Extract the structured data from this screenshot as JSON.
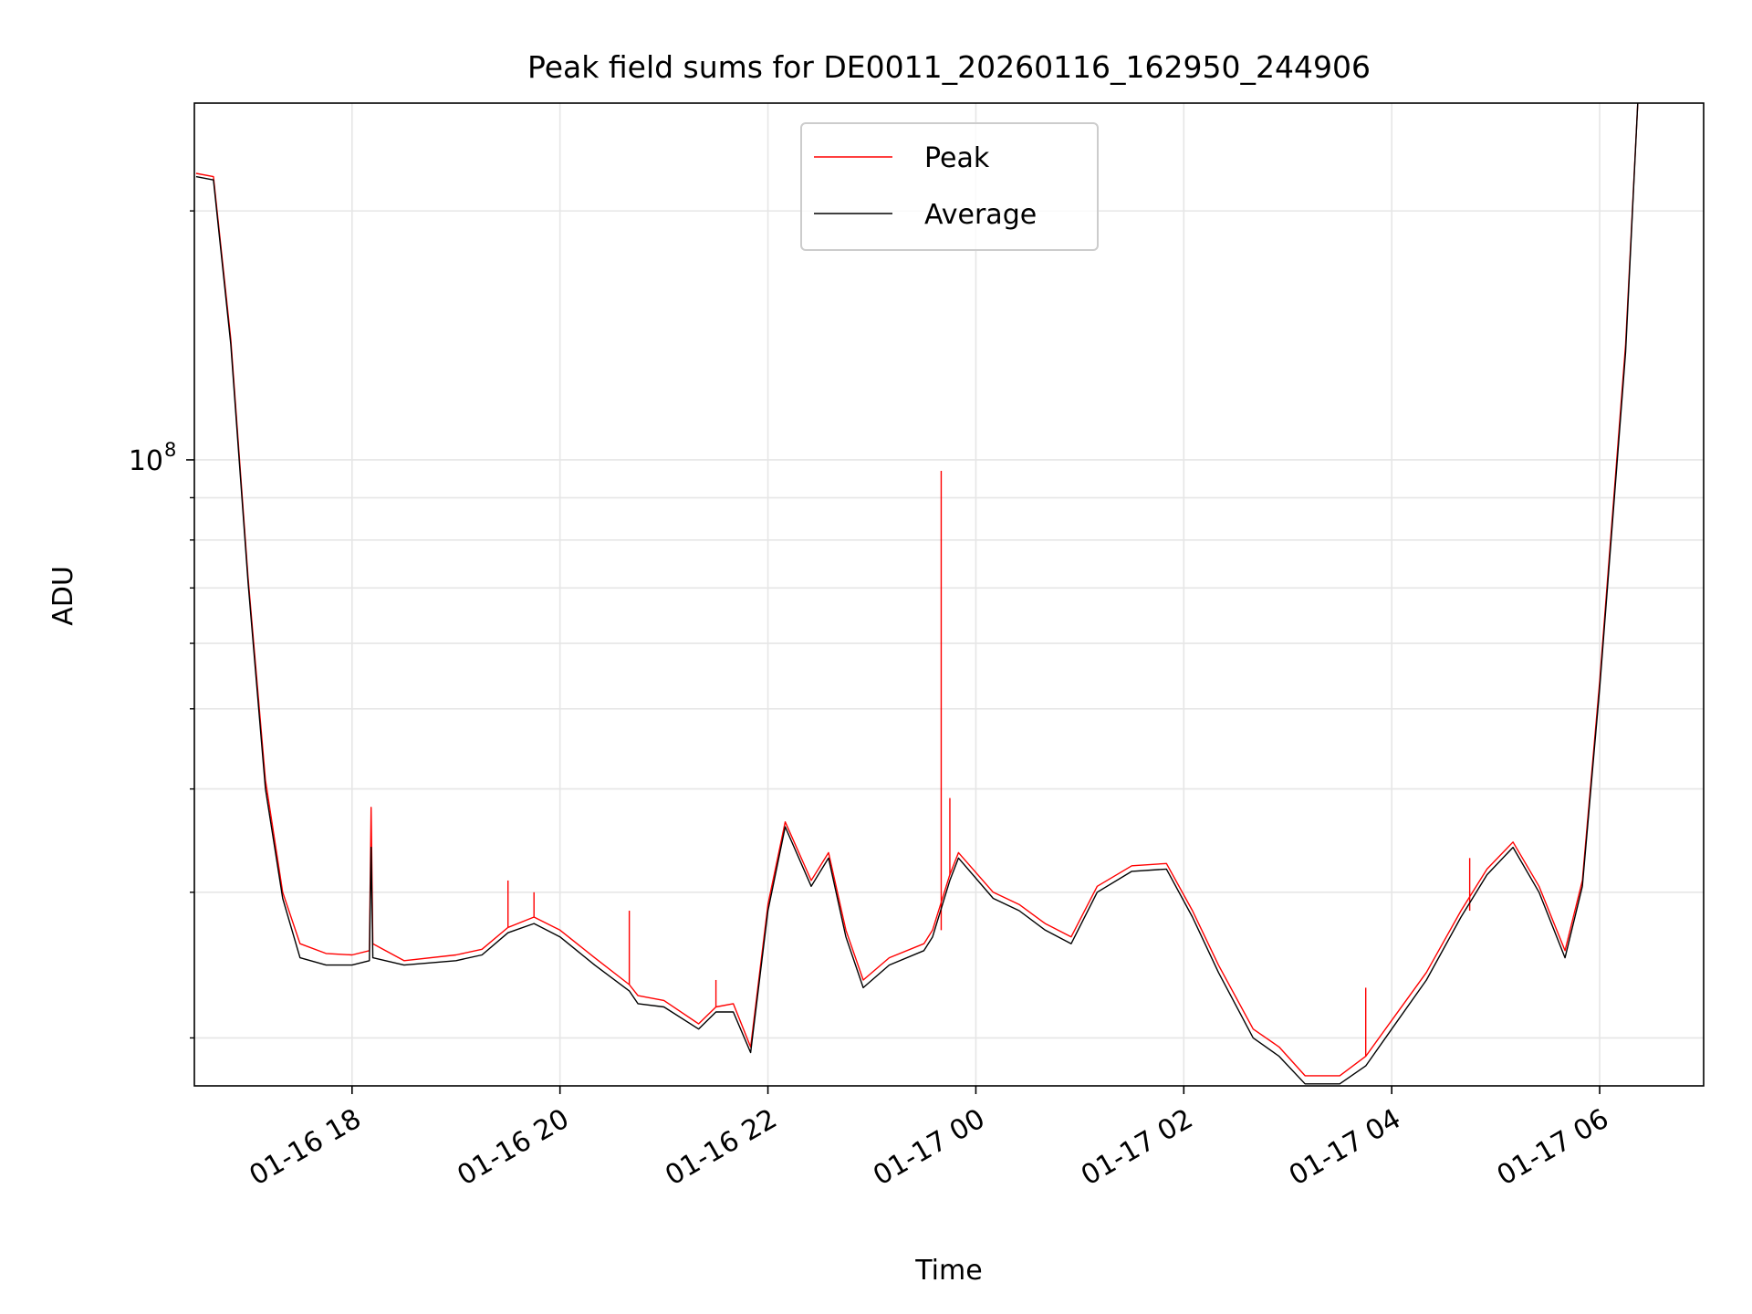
{
  "chart_data": {
    "type": "line",
    "title": "Peak field sums for DE0011_20260116_162950_244906",
    "xlabel": "Time",
    "ylabel": "ADU",
    "yscale": "log",
    "grid": true,
    "legend_position": "top-center",
    "xlim": [
      "2026-01-16 16:29",
      "2026-01-17 07:00"
    ],
    "ylim": [
      17500000,
      270000000
    ],
    "x_ticks": [
      {
        "label": "01-16 18",
        "value": "2026-01-16 18:00"
      },
      {
        "label": "01-16 20",
        "value": "2026-01-16 20:00"
      },
      {
        "label": "01-16 22",
        "value": "2026-01-16 22:00"
      },
      {
        "label": "01-17 00",
        "value": "2026-01-17 00:00"
      },
      {
        "label": "01-17 02",
        "value": "2026-01-17 02:00"
      },
      {
        "label": "01-17 04",
        "value": "2026-01-17 04:00"
      },
      {
        "label": "01-17 06",
        "value": "2026-01-17 06:00"
      }
    ],
    "y_major_ticks": [
      {
        "label_base": "10",
        "label_exp": "8",
        "value": 100000000
      }
    ],
    "y_minor_ticks": [
      20000000,
      30000000,
      40000000,
      50000000,
      60000000,
      70000000,
      80000000,
      90000000,
      200000000
    ],
    "series": [
      {
        "name": "Peak",
        "color": "#ff0000",
        "points": [
          [
            "2026-01-16 16:30",
            222000000.0
          ],
          [
            "2026-01-16 16:40",
            220000000.0
          ],
          [
            "2026-01-16 16:50",
            140000000.0
          ],
          [
            "2026-01-16 17:00",
            72000000.0
          ],
          [
            "2026-01-16 17:10",
            41000000.0
          ],
          [
            "2026-01-16 17:20",
            30000000.0
          ],
          [
            "2026-01-16 17:30",
            26000000.0
          ],
          [
            "2026-01-16 17:45",
            25300000.0
          ],
          [
            "2026-01-16 18:00",
            25200000.0
          ],
          [
            "2026-01-16 18:10",
            25500000.0
          ],
          [
            "2026-01-16 18:11",
            38000000.0
          ],
          [
            "2026-01-16 18:12",
            26000000.0
          ],
          [
            "2026-01-16 18:30",
            24800000.0
          ],
          [
            "2026-01-16 19:00",
            25200000.0
          ],
          [
            "2026-01-16 19:15",
            25600000.0
          ],
          [
            "2026-01-16 19:30",
            27200000.0
          ],
          [
            "2026-01-16 19:45",
            28000000.0
          ],
          [
            "2026-01-16 20:00",
            27000000.0
          ],
          [
            "2026-01-16 20:20",
            25000000.0
          ],
          [
            "2026-01-16 20:40",
            23200000.0
          ],
          [
            "2026-01-16 20:45",
            22500000.0
          ],
          [
            "2026-01-16 21:00",
            22200000.0
          ],
          [
            "2026-01-16 21:20",
            20800000.0
          ],
          [
            "2026-01-16 21:30",
            21800000.0
          ],
          [
            "2026-01-16 21:40",
            22000000.0
          ],
          [
            "2026-01-16 21:50",
            19500000.0
          ],
          [
            "2026-01-16 22:00",
            29000000.0
          ],
          [
            "2026-01-16 22:10",
            36500000.0
          ],
          [
            "2026-01-16 22:25",
            31000000.0
          ],
          [
            "2026-01-16 22:35",
            33500000.0
          ],
          [
            "2026-01-16 22:45",
            27000000.0
          ],
          [
            "2026-01-16 22:55",
            23500000.0
          ],
          [
            "2026-01-16 23:10",
            25000000.0
          ],
          [
            "2026-01-16 23:30",
            26000000.0
          ],
          [
            "2026-01-16 23:35",
            27000000.0
          ],
          [
            "2026-01-16 23:45",
            31500000.0
          ],
          [
            "2026-01-16 23:50",
            33500000.0
          ],
          [
            "2026-01-17 00:10",
            30000000.0
          ],
          [
            "2026-01-17 00:25",
            29000000.0
          ],
          [
            "2026-01-17 00:40",
            27500000.0
          ],
          [
            "2026-01-17 00:55",
            26500000.0
          ],
          [
            "2026-01-17 01:10",
            30500000.0
          ],
          [
            "2026-01-17 01:30",
            32300000.0
          ],
          [
            "2026-01-17 01:50",
            32500000.0
          ],
          [
            "2026-01-17 02:05",
            28500000.0
          ],
          [
            "2026-01-17 02:20",
            24500000.0
          ],
          [
            "2026-01-17 02:40",
            20500000.0
          ],
          [
            "2026-01-17 02:55",
            19500000.0
          ],
          [
            "2026-01-17 03:10",
            18000000.0
          ],
          [
            "2026-01-17 03:30",
            18000000.0
          ],
          [
            "2026-01-17 03:45",
            19000000.0
          ],
          [
            "2026-01-17 04:00",
            21000000.0
          ],
          [
            "2026-01-17 04:20",
            24000000.0
          ],
          [
            "2026-01-17 04:40",
            28500000.0
          ],
          [
            "2026-01-17 04:55",
            32000000.0
          ],
          [
            "2026-01-17 05:10",
            34500000.0
          ],
          [
            "2026-01-17 05:25",
            30500000.0
          ],
          [
            "2026-01-17 05:40",
            25500000.0
          ],
          [
            "2026-01-17 05:50",
            31000000.0
          ],
          [
            "2026-01-17 06:00",
            54000000.0
          ],
          [
            "2026-01-17 06:15",
            138000000.0
          ],
          [
            "2026-01-17 06:22",
            270000000.0
          ]
        ],
        "spikes": [
          [
            "2026-01-16 18:11",
            38000000.0
          ],
          [
            "2026-01-16 19:30",
            31000000.0
          ],
          [
            "2026-01-16 19:45",
            30000000.0
          ],
          [
            "2026-01-16 20:40",
            28500000.0
          ],
          [
            "2026-01-16 21:30",
            23500000.0
          ],
          [
            "2026-01-16 23:40",
            97000000.0
          ],
          [
            "2026-01-16 23:45",
            39000000.0
          ],
          [
            "2026-01-17 03:45",
            23000000.0
          ],
          [
            "2026-01-17 04:45",
            33000000.0
          ]
        ]
      },
      {
        "name": "Average",
        "color": "#000000",
        "points": [
          [
            "2026-01-16 16:30",
            220000000.0
          ],
          [
            "2026-01-16 16:40",
            218000000.0
          ],
          [
            "2026-01-16 16:50",
            138000000.0
          ],
          [
            "2026-01-16 17:00",
            71000000.0
          ],
          [
            "2026-01-16 17:10",
            40000000.0
          ],
          [
            "2026-01-16 17:20",
            29500000.0
          ],
          [
            "2026-01-16 17:30",
            25000000.0
          ],
          [
            "2026-01-16 17:45",
            24500000.0
          ],
          [
            "2026-01-16 18:00",
            24500000.0
          ],
          [
            "2026-01-16 18:10",
            24800000.0
          ],
          [
            "2026-01-16 18:11",
            34000000.0
          ],
          [
            "2026-01-16 18:12",
            25000000.0
          ],
          [
            "2026-01-16 18:30",
            24500000.0
          ],
          [
            "2026-01-16 19:00",
            24800000.0
          ],
          [
            "2026-01-16 19:15",
            25200000.0
          ],
          [
            "2026-01-16 19:30",
            26800000.0
          ],
          [
            "2026-01-16 19:45",
            27500000.0
          ],
          [
            "2026-01-16 20:00",
            26500000.0
          ],
          [
            "2026-01-16 20:20",
            24500000.0
          ],
          [
            "2026-01-16 20:40",
            22800000.0
          ],
          [
            "2026-01-16 20:45",
            22000000.0
          ],
          [
            "2026-01-16 21:00",
            21800000.0
          ],
          [
            "2026-01-16 21:20",
            20500000.0
          ],
          [
            "2026-01-16 21:30",
            21500000.0
          ],
          [
            "2026-01-16 21:40",
            21500000.0
          ],
          [
            "2026-01-16 21:50",
            19200000.0
          ],
          [
            "2026-01-16 22:00",
            28500000.0
          ],
          [
            "2026-01-16 22:10",
            36000000.0
          ],
          [
            "2026-01-16 22:25",
            30500000.0
          ],
          [
            "2026-01-16 22:35",
            33000000.0
          ],
          [
            "2026-01-16 22:45",
            26500000.0
          ],
          [
            "2026-01-16 22:55",
            23000000.0
          ],
          [
            "2026-01-16 23:10",
            24500000.0
          ],
          [
            "2026-01-16 23:30",
            25500000.0
          ],
          [
            "2026-01-16 23:35",
            26500000.0
          ],
          [
            "2026-01-16 23:45",
            31000000.0
          ],
          [
            "2026-01-16 23:50",
            33000000.0
          ],
          [
            "2026-01-17 00:10",
            29500000.0
          ],
          [
            "2026-01-17 00:25",
            28500000.0
          ],
          [
            "2026-01-17 00:40",
            27000000.0
          ],
          [
            "2026-01-17 00:55",
            26000000.0
          ],
          [
            "2026-01-17 01:10",
            30000000.0
          ],
          [
            "2026-01-17 01:30",
            31800000.0
          ],
          [
            "2026-01-17 01:50",
            32000000.0
          ],
          [
            "2026-01-17 02:05",
            28000000.0
          ],
          [
            "2026-01-17 02:20",
            24000000.0
          ],
          [
            "2026-01-17 02:40",
            20000000.0
          ],
          [
            "2026-01-17 02:55",
            19000000.0
          ],
          [
            "2026-01-17 03:10",
            17600000.0
          ],
          [
            "2026-01-17 03:30",
            17600000.0
          ],
          [
            "2026-01-17 03:45",
            18500000.0
          ],
          [
            "2026-01-17 04:00",
            20500000.0
          ],
          [
            "2026-01-17 04:20",
            23500000.0
          ],
          [
            "2026-01-17 04:40",
            28000000.0
          ],
          [
            "2026-01-17 04:55",
            31500000.0
          ],
          [
            "2026-01-17 05:10",
            34000000.0
          ],
          [
            "2026-01-17 05:25",
            30000000.0
          ],
          [
            "2026-01-17 05:40",
            25000000.0
          ],
          [
            "2026-01-17 05:50",
            30500000.0
          ],
          [
            "2026-01-17 06:00",
            53000000.0
          ],
          [
            "2026-01-17 06:15",
            135000000.0
          ],
          [
            "2026-01-17 06:22",
            270000000.0
          ]
        ]
      }
    ]
  }
}
